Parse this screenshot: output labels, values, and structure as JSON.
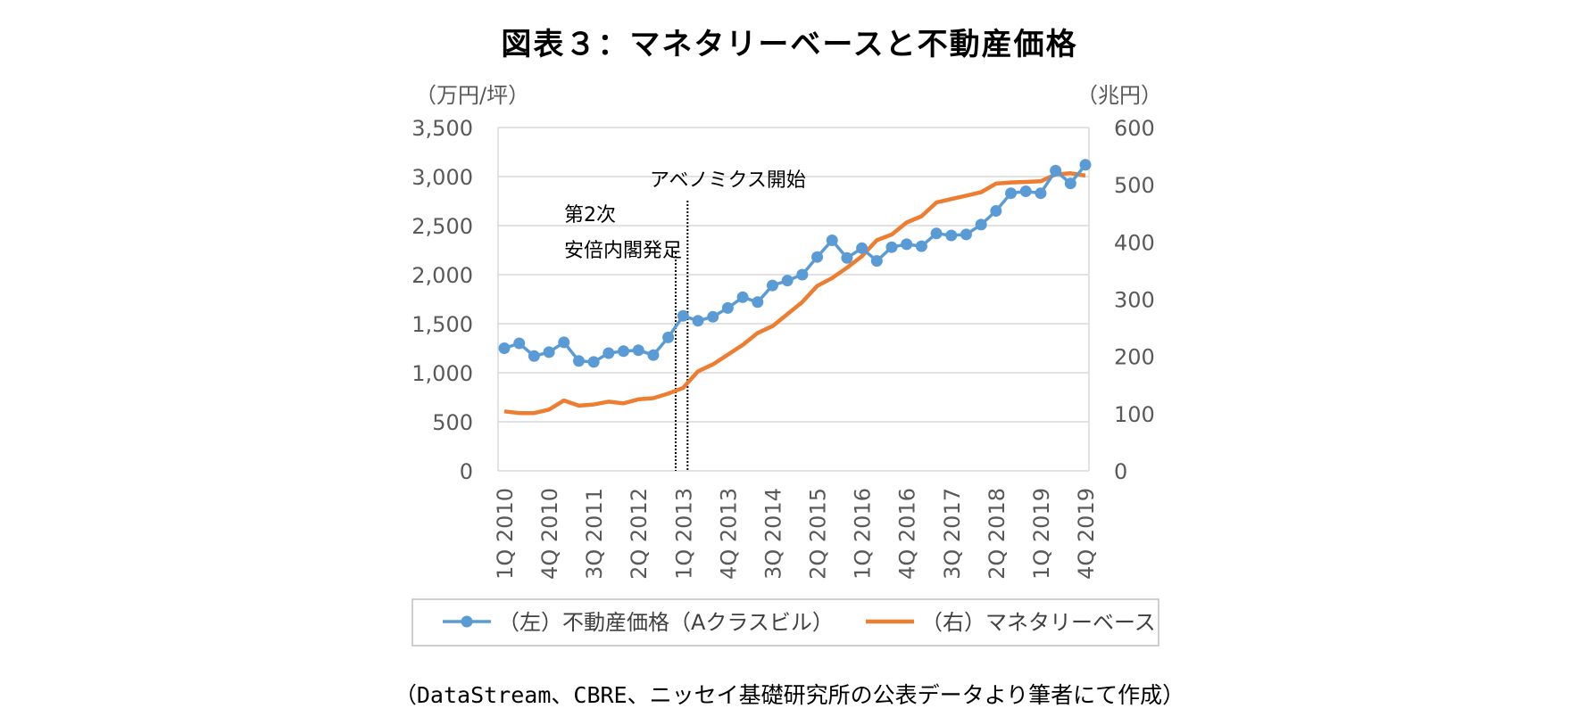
{
  "title": "図表３：マネタリーベースと不動産価格",
  "source_note": "（DataStream、CBRE、ニッセイ基礎研究所の公表データより筆者にて作成）",
  "colors": {
    "price_series": "#5b9bd5",
    "base_series": "#ed7d31",
    "grid": "#d9d9d9",
    "axis_text": "#595959"
  },
  "chart_data": {
    "type": "line",
    "y_left_unit": "（万円/坪）",
    "y_right_unit": "（兆円）",
    "y_left_ticks": [
      "0",
      "500",
      "1,000",
      "1,500",
      "2,000",
      "2,500",
      "3,000",
      "3,500"
    ],
    "y_right_ticks": [
      "0",
      "100",
      "200",
      "300",
      "400",
      "500",
      "600"
    ],
    "ylim_left": [
      0,
      3500
    ],
    "ylim_right": [
      0,
      600
    ],
    "grid": true,
    "legend_position": "bottom",
    "x_labels": [
      "1Q 2010",
      "4Q 2010",
      "3Q 2011",
      "2Q 2012",
      "1Q 2013",
      "4Q 2013",
      "3Q 2014",
      "2Q 2015",
      "1Q 2016",
      "4Q 2016",
      "3Q 2017",
      "2Q 2018",
      "1Q 2019",
      "4Q 2019"
    ],
    "series": [
      {
        "name": "（左）不動産価格（Aクラスビル）",
        "axis": "left",
        "style": "line-with-markers",
        "values": [
          1250,
          1300,
          1170,
          1210,
          1310,
          1120,
          1110,
          1200,
          1220,
          1230,
          1180,
          1360,
          1580,
          1530,
          1570,
          1660,
          1770,
          1720,
          1890,
          1940,
          2000,
          2180,
          2350,
          2170,
          2270,
          2140,
          2280,
          2310,
          2290,
          2420,
          2400,
          2410,
          2510,
          2650,
          2830,
          2850,
          2830,
          3060,
          2930,
          3120
        ]
      },
      {
        "name": "（右）マネタリーベース",
        "axis": "right",
        "style": "line",
        "values": [
          104,
          101,
          101,
          107,
          123,
          114,
          116,
          121,
          118,
          125,
          127,
          135,
          145,
          174,
          186,
          203,
          220,
          241,
          253,
          274,
          295,
          323,
          337,
          355,
          375,
          403,
          413,
          434,
          445,
          469,
          475,
          481,
          487,
          502,
          504,
          505,
          506,
          518,
          520,
          516
        ]
      }
    ],
    "annotations": [
      {
        "label_lines": [
          "第2次",
          "安倍内閣発足"
        ],
        "at_index": 11.5
      },
      {
        "label_lines": [
          "アベノミクス開始"
        ],
        "at_index": 12.3
      }
    ]
  }
}
